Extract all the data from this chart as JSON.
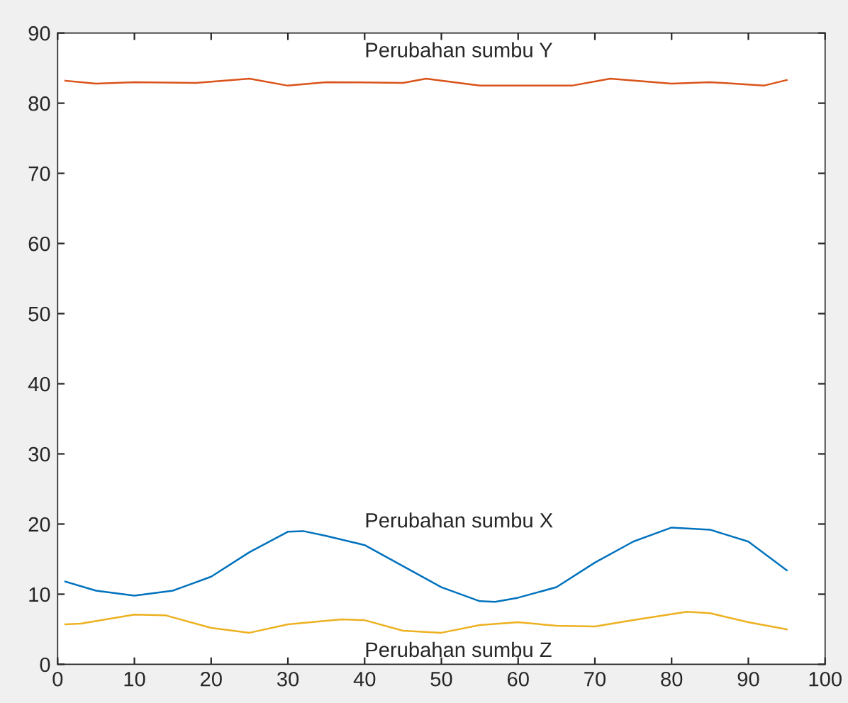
{
  "chart_data": {
    "type": "line",
    "xlim": [
      0,
      100
    ],
    "ylim": [
      0,
      90
    ],
    "xticks": [
      0,
      10,
      20,
      30,
      40,
      50,
      60,
      70,
      80,
      90,
      100
    ],
    "yticks": [
      0,
      10,
      20,
      30,
      40,
      50,
      60,
      70,
      80,
      90
    ],
    "grid": false,
    "legend": false,
    "marker": "none",
    "line_style": "solid",
    "series": [
      {
        "color": "#0072bd",
        "x": [
          1,
          5,
          10,
          15,
          20,
          25,
          30,
          32,
          35,
          40,
          45,
          50,
          55,
          57,
          60,
          65,
          70,
          75,
          80,
          85,
          90,
          95
        ],
        "values": [
          11.8,
          10.5,
          9.8,
          10.5,
          12.5,
          16,
          18.9,
          19,
          18.3,
          17,
          14,
          11,
          9,
          8.9,
          9.5,
          11,
          14.5,
          17.5,
          19.5,
          19.2,
          17.5,
          13.4
        ]
      },
      {
        "color": "#d95319",
        "x": [
          1,
          5,
          10,
          18,
          25,
          30,
          35,
          45,
          48,
          55,
          60,
          67,
          72,
          80,
          85,
          92,
          95
        ],
        "values": [
          83.2,
          82.8,
          83,
          82.9,
          83.5,
          82.5,
          83,
          82.9,
          83.5,
          82.5,
          82.5,
          82.5,
          83.5,
          82.8,
          83,
          82.5,
          83.3
        ]
      },
      {
        "color": "#edb120",
        "x": [
          1,
          3,
          10,
          14,
          20,
          25,
          30,
          37,
          40,
          45,
          50,
          55,
          60,
          65,
          70,
          75,
          82,
          85,
          90,
          95
        ],
        "values": [
          5.7,
          5.8,
          7.1,
          7,
          5.2,
          4.5,
          5.7,
          6.4,
          6.3,
          4.8,
          4.5,
          5.6,
          6,
          5.5,
          5.4,
          6.3,
          7.5,
          7.3,
          6,
          5
        ]
      }
    ],
    "annotations": [
      "Perubahan sumbu Y",
      "Perubahan sumbu X",
      "Perubahan sumbu Z"
    ]
  }
}
